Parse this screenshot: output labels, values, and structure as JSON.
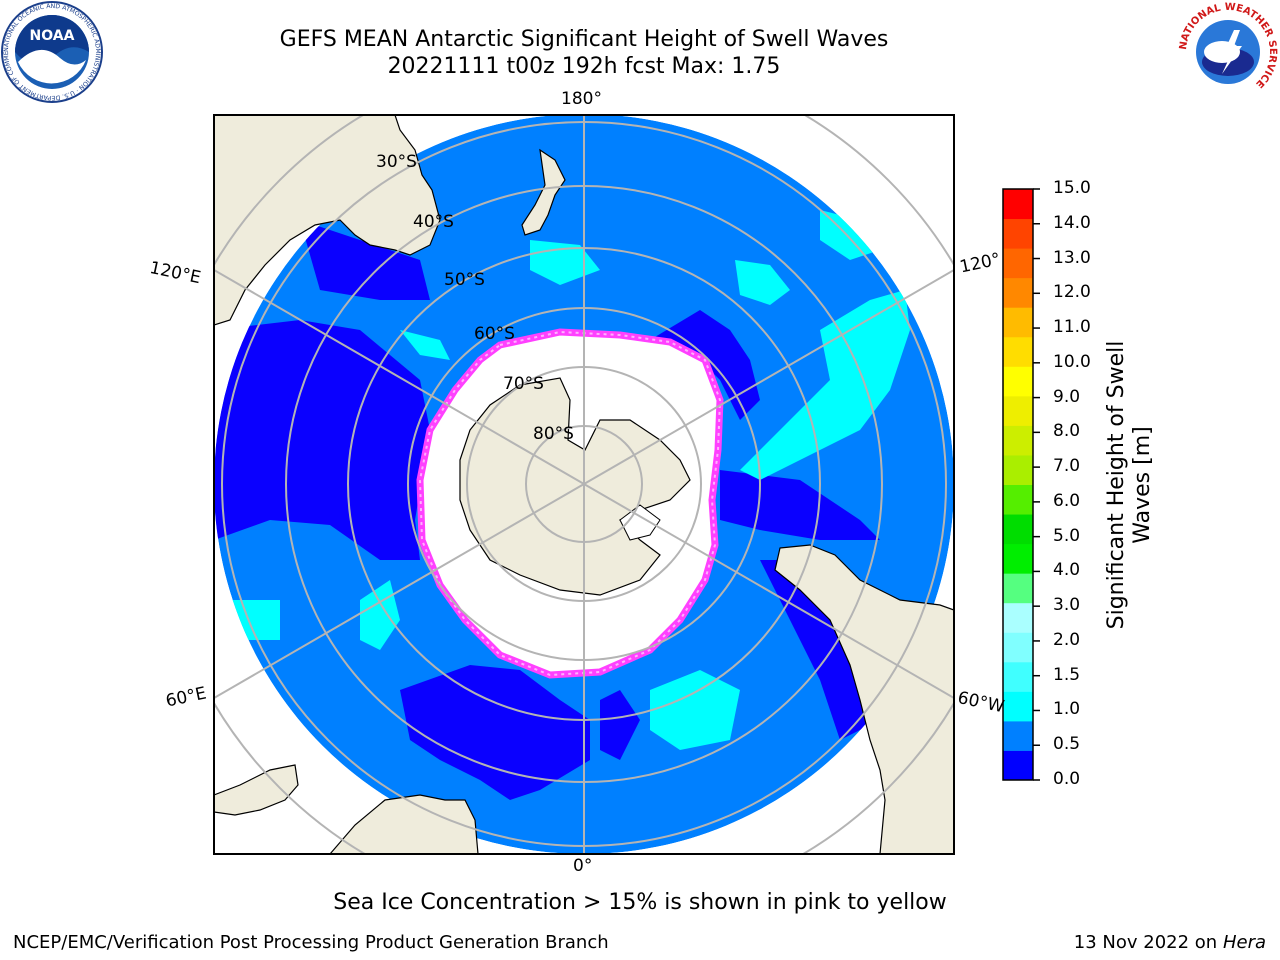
{
  "title": {
    "line1": "GEFS MEAN Antarctic Significant Height of Swell Waves",
    "line2": "20221111 t00z 192h fcst   Max: 1.75"
  },
  "map": {
    "projection": "south-polar-stereographic",
    "longitude_labels": [
      "180°",
      "120°E",
      "120°",
      "60°E",
      "60°W",
      "0°"
    ],
    "latitude_labels": [
      "30°S",
      "40°S",
      "50°S",
      "60°S",
      "70°S",
      "80°S"
    ],
    "colors": {
      "ocean_low": "#0a00ff",
      "ocean_mid": "#0080ff",
      "swell_high": "#00ffff",
      "land": "#efecdc",
      "ice_edge": "#ff40ff",
      "grid": "#b4b4b4"
    }
  },
  "note": "Sea Ice Concentration > 15% is shown in pink to yellow",
  "footer": {
    "left": "NCEP/EMC/Verification Post Processing Product Generation Branch",
    "right_date": "13 Nov 2022 on",
    "right_host": "Hera"
  },
  "colorbar": {
    "title_line1": "Significant Height of Swell",
    "title_line2": "Waves [m]",
    "ticks": [
      "15.0",
      "14.0",
      "13.0",
      "12.0",
      "11.0",
      "10.0",
      "9.0",
      "8.0",
      "7.0",
      "6.0",
      "5.0",
      "4.0",
      "3.0",
      "2.0",
      "1.5",
      "1.0",
      "0.5",
      "0.0"
    ],
    "colors": [
      "#0000ff",
      "#0080ff",
      "#00ffff",
      "#40ffff",
      "#80ffff",
      "#aaffff",
      "#55ff80",
      "#00ee00",
      "#00dd00",
      "#55ee00",
      "#aaee00",
      "#ccee00",
      "#eeee00",
      "#ffff00",
      "#ffdd00",
      "#ffbb00",
      "#ff8800",
      "#ff6600",
      "#ff4400",
      "#ff0000"
    ]
  },
  "logos": {
    "noaa": {
      "text": "NOAA",
      "ring": "NATIONAL OCEANIC AND ATMOSPHERIC ADMINISTRATION · U.S. DEPARTMENT OF COMMERCE"
    },
    "nws": {
      "ring": "NATIONAL WEATHER SERVICE"
    }
  }
}
